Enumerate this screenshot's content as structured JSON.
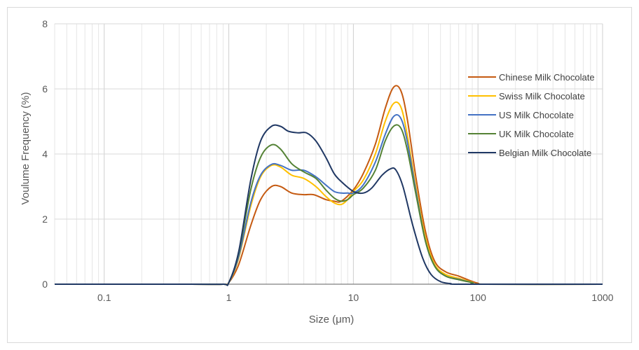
{
  "chart_data": {
    "type": "line",
    "title": "",
    "xlabel": "Size (μm)",
    "ylabel": "Voulume Frequency (%)",
    "x_scale": "log",
    "xlim": [
      0.04,
      1000
    ],
    "ylim": [
      0,
      8
    ],
    "x_ticks": [
      0.1,
      1,
      10,
      100,
      1000
    ],
    "x_tick_labels": [
      "0.1",
      "1",
      "10",
      "100",
      "1000"
    ],
    "y_ticks": [
      0,
      2,
      4,
      6,
      8
    ],
    "y_tick_labels": [
      "0",
      "2",
      "4",
      "6",
      "8"
    ],
    "grid": true,
    "legend_position": "right",
    "series": [
      {
        "name": "Chinese Milk Chocolate",
        "color": "#c55a11",
        "points": [
          [
            0.04,
            0
          ],
          [
            0.5,
            0
          ],
          [
            0.9,
            0
          ],
          [
            1.0,
            0.05
          ],
          [
            1.2,
            0.6
          ],
          [
            1.5,
            1.8
          ],
          [
            1.8,
            2.6
          ],
          [
            2.2,
            3.0
          ],
          [
            2.6,
            3.0
          ],
          [
            3.2,
            2.8
          ],
          [
            4.0,
            2.75
          ],
          [
            4.8,
            2.75
          ],
          [
            6.0,
            2.6
          ],
          [
            7.0,
            2.55
          ],
          [
            8.0,
            2.55
          ],
          [
            10,
            2.9
          ],
          [
            12,
            3.4
          ],
          [
            15,
            4.3
          ],
          [
            18,
            5.4
          ],
          [
            21,
            6.05
          ],
          [
            24,
            5.95
          ],
          [
            27,
            5.1
          ],
          [
            32,
            3.2
          ],
          [
            38,
            1.6
          ],
          [
            45,
            0.7
          ],
          [
            55,
            0.38
          ],
          [
            70,
            0.25
          ],
          [
            85,
            0.12
          ],
          [
            100,
            0.03
          ],
          [
            120,
            0
          ],
          [
            1000,
            0
          ]
        ]
      },
      {
        "name": "Swiss Milk Chocolate",
        "color": "#ffc000",
        "points": [
          [
            0.04,
            0
          ],
          [
            0.5,
            0
          ],
          [
            0.9,
            0
          ],
          [
            1.0,
            0.05
          ],
          [
            1.2,
            0.8
          ],
          [
            1.5,
            2.4
          ],
          [
            1.8,
            3.3
          ],
          [
            2.2,
            3.65
          ],
          [
            2.6,
            3.6
          ],
          [
            3.2,
            3.35
          ],
          [
            4.0,
            3.25
          ],
          [
            5.0,
            3.0
          ],
          [
            6.0,
            2.7
          ],
          [
            7.0,
            2.5
          ],
          [
            8.0,
            2.45
          ],
          [
            9.0,
            2.6
          ],
          [
            10,
            2.85
          ],
          [
            12,
            3.2
          ],
          [
            15,
            4.0
          ],
          [
            18,
            5.0
          ],
          [
            21,
            5.55
          ],
          [
            24,
            5.45
          ],
          [
            27,
            4.6
          ],
          [
            32,
            2.9
          ],
          [
            38,
            1.4
          ],
          [
            45,
            0.6
          ],
          [
            55,
            0.3
          ],
          [
            70,
            0.18
          ],
          [
            90,
            0.06
          ],
          [
            110,
            0
          ],
          [
            1000,
            0
          ]
        ]
      },
      {
        "name": "US Milk Chocolate",
        "color": "#4472c4",
        "points": [
          [
            0.04,
            0
          ],
          [
            0.5,
            0
          ],
          [
            0.9,
            0
          ],
          [
            1.0,
            0.05
          ],
          [
            1.2,
            0.85
          ],
          [
            1.5,
            2.5
          ],
          [
            1.8,
            3.35
          ],
          [
            2.2,
            3.68
          ],
          [
            2.6,
            3.65
          ],
          [
            3.2,
            3.5
          ],
          [
            4.0,
            3.5
          ],
          [
            5.0,
            3.3
          ],
          [
            6.0,
            3.05
          ],
          [
            7.0,
            2.85
          ],
          [
            8.0,
            2.8
          ],
          [
            9.0,
            2.8
          ],
          [
            10,
            2.8
          ],
          [
            12,
            3.05
          ],
          [
            15,
            3.75
          ],
          [
            18,
            4.6
          ],
          [
            21,
            5.15
          ],
          [
            24,
            5.1
          ],
          [
            27,
            4.4
          ],
          [
            32,
            2.8
          ],
          [
            38,
            1.3
          ],
          [
            45,
            0.55
          ],
          [
            55,
            0.25
          ],
          [
            70,
            0.15
          ],
          [
            90,
            0.05
          ],
          [
            110,
            0
          ],
          [
            1000,
            0
          ]
        ]
      },
      {
        "name": "UK Milk Chocolate",
        "color": "#548235",
        "points": [
          [
            0.04,
            0
          ],
          [
            0.5,
            0
          ],
          [
            0.9,
            0
          ],
          [
            1.0,
            0.05
          ],
          [
            1.2,
            0.95
          ],
          [
            1.5,
            2.9
          ],
          [
            1.8,
            3.9
          ],
          [
            2.2,
            4.28
          ],
          [
            2.6,
            4.15
          ],
          [
            3.2,
            3.7
          ],
          [
            4.0,
            3.45
          ],
          [
            5.0,
            3.25
          ],
          [
            6.0,
            2.9
          ],
          [
            7.0,
            2.65
          ],
          [
            8.0,
            2.55
          ],
          [
            9.0,
            2.6
          ],
          [
            10,
            2.75
          ],
          [
            12,
            2.95
          ],
          [
            15,
            3.5
          ],
          [
            18,
            4.4
          ],
          [
            21,
            4.85
          ],
          [
            24,
            4.8
          ],
          [
            27,
            4.15
          ],
          [
            32,
            2.7
          ],
          [
            38,
            1.3
          ],
          [
            45,
            0.55
          ],
          [
            55,
            0.25
          ],
          [
            70,
            0.14
          ],
          [
            90,
            0.05
          ],
          [
            110,
            0
          ],
          [
            1000,
            0
          ]
        ]
      },
      {
        "name": "Belgian Milk Chocolate",
        "color": "#203864",
        "points": [
          [
            0.04,
            0
          ],
          [
            0.5,
            0
          ],
          [
            0.9,
            0
          ],
          [
            1.0,
            0.05
          ],
          [
            1.2,
            1.0
          ],
          [
            1.5,
            3.2
          ],
          [
            1.8,
            4.4
          ],
          [
            2.2,
            4.85
          ],
          [
            2.6,
            4.85
          ],
          [
            3.0,
            4.7
          ],
          [
            3.6,
            4.65
          ],
          [
            4.2,
            4.65
          ],
          [
            5.0,
            4.4
          ],
          [
            6.0,
            3.9
          ],
          [
            7.0,
            3.4
          ],
          [
            8.0,
            3.15
          ],
          [
            10,
            2.85
          ],
          [
            12,
            2.8
          ],
          [
            14,
            2.95
          ],
          [
            17,
            3.35
          ],
          [
            20,
            3.55
          ],
          [
            22,
            3.5
          ],
          [
            25,
            3.0
          ],
          [
            30,
            1.8
          ],
          [
            36,
            0.8
          ],
          [
            42,
            0.3
          ],
          [
            50,
            0.08
          ],
          [
            60,
            0.02
          ],
          [
            80,
            0
          ],
          [
            1000,
            0
          ]
        ]
      }
    ]
  }
}
